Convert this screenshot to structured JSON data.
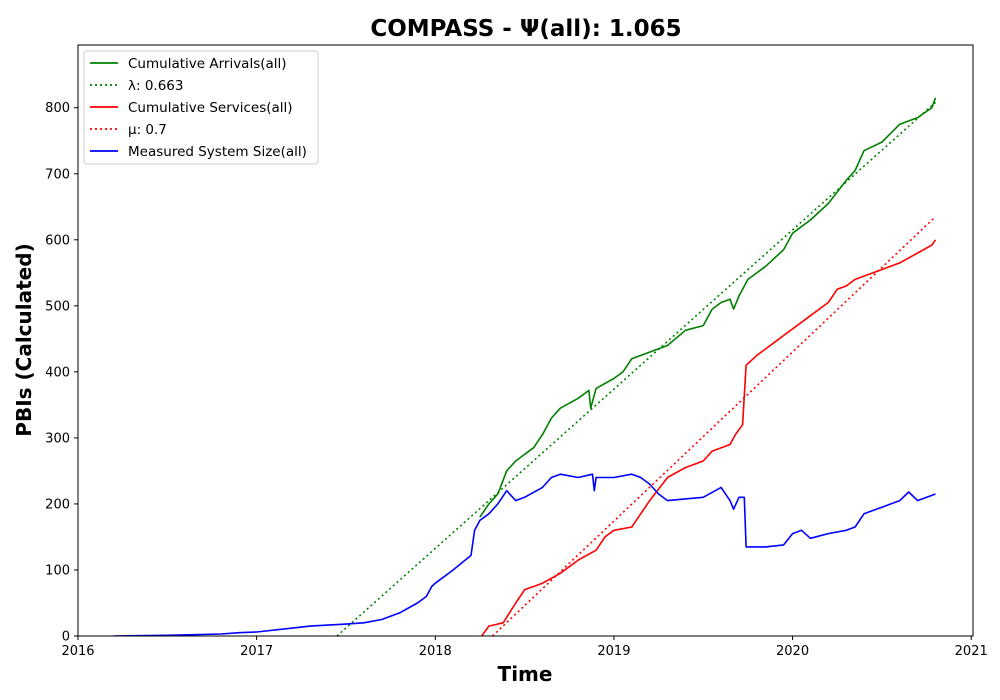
{
  "chart_data": {
    "type": "line",
    "title": "COMPASS -  Ψ(all): 1.065",
    "xlabel": "Time",
    "ylabel": "PBIs (Calculated)",
    "xlim": [
      2016,
      2021.01
    ],
    "ylim": [
      0,
      895
    ],
    "x_ticks": [
      "2016",
      "2017",
      "2018",
      "2019",
      "2020",
      "2021"
    ],
    "y_ticks": [
      "0",
      "100",
      "200",
      "300",
      "400",
      "500",
      "600",
      "700",
      "800"
    ],
    "grid": false,
    "legend_placement": "top-left",
    "colors": {
      "arrivals": "#008000",
      "services": "#ff0000",
      "system_size": "#0000ff"
    },
    "legend": [
      {
        "label": "Cumulative Arrivals(all)",
        "color": "#008000",
        "style": "solid"
      },
      {
        "label": "λ: 0.663",
        "color": "#008000",
        "style": "dotted"
      },
      {
        "label": "Cumulative Services(all)",
        "color": "#ff0000",
        "style": "solid"
      },
      {
        "label": "μ: 0.7",
        "color": "#ff0000",
        "style": "dotted"
      },
      {
        "label": "Measured System Size(all)",
        "color": "#0000ff",
        "style": "solid"
      }
    ],
    "series": [
      {
        "name": "Cumulative Arrivals(all)",
        "color": "#008000",
        "style": "solid",
        "points": [
          [
            2018.25,
            180
          ],
          [
            2018.3,
            200
          ],
          [
            2018.35,
            215
          ],
          [
            2018.4,
            250
          ],
          [
            2018.45,
            265
          ],
          [
            2018.5,
            275
          ],
          [
            2018.55,
            285
          ],
          [
            2018.6,
            305
          ],
          [
            2018.65,
            330
          ],
          [
            2018.7,
            345
          ],
          [
            2018.8,
            360
          ],
          [
            2018.86,
            372
          ],
          [
            2018.87,
            345
          ],
          [
            2018.9,
            375
          ],
          [
            2019.0,
            390
          ],
          [
            2019.05,
            400
          ],
          [
            2019.1,
            420
          ],
          [
            2019.2,
            430
          ],
          [
            2019.3,
            440
          ],
          [
            2019.4,
            463
          ],
          [
            2019.5,
            470
          ],
          [
            2019.55,
            495
          ],
          [
            2019.6,
            505
          ],
          [
            2019.65,
            510
          ],
          [
            2019.67,
            495
          ],
          [
            2019.7,
            515
          ],
          [
            2019.75,
            540
          ],
          [
            2019.85,
            560
          ],
          [
            2019.95,
            585
          ],
          [
            2020.0,
            610
          ],
          [
            2020.1,
            630
          ],
          [
            2020.2,
            655
          ],
          [
            2020.3,
            690
          ],
          [
            2020.35,
            705
          ],
          [
            2020.4,
            735
          ],
          [
            2020.5,
            748
          ],
          [
            2020.6,
            775
          ],
          [
            2020.7,
            785
          ],
          [
            2020.78,
            800
          ],
          [
            2020.8,
            815
          ]
        ]
      },
      {
        "name": "λ: 0.663",
        "color": "#008000",
        "style": "dotted",
        "points": [
          [
            2017.45,
            0
          ],
          [
            2020.8,
            808
          ]
        ]
      },
      {
        "name": "Cumulative Services(all)",
        "color": "#ff0000",
        "style": "solid",
        "points": [
          [
            2018.26,
            0
          ],
          [
            2018.3,
            15
          ],
          [
            2018.38,
            20
          ],
          [
            2018.45,
            50
          ],
          [
            2018.5,
            70
          ],
          [
            2018.6,
            80
          ],
          [
            2018.7,
            95
          ],
          [
            2018.8,
            115
          ],
          [
            2018.9,
            130
          ],
          [
            2018.95,
            150
          ],
          [
            2019.0,
            160
          ],
          [
            2019.1,
            165
          ],
          [
            2019.15,
            185
          ],
          [
            2019.2,
            205
          ],
          [
            2019.3,
            240
          ],
          [
            2019.4,
            255
          ],
          [
            2019.5,
            265
          ],
          [
            2019.55,
            280
          ],
          [
            2019.65,
            290
          ],
          [
            2019.68,
            305
          ],
          [
            2019.72,
            320
          ],
          [
            2019.74,
            410
          ],
          [
            2019.8,
            425
          ],
          [
            2019.9,
            445
          ],
          [
            2019.95,
            455
          ],
          [
            2020.0,
            465
          ],
          [
            2020.1,
            485
          ],
          [
            2020.2,
            505
          ],
          [
            2020.25,
            525
          ],
          [
            2020.3,
            530
          ],
          [
            2020.35,
            540
          ],
          [
            2020.4,
            545
          ],
          [
            2020.5,
            555
          ],
          [
            2020.6,
            565
          ],
          [
            2020.7,
            580
          ],
          [
            2020.78,
            592
          ],
          [
            2020.8,
            600
          ]
        ]
      },
      {
        "name": "μ: 0.7",
        "color": "#ff0000",
        "style": "dotted",
        "points": [
          [
            2018.32,
            0
          ],
          [
            2020.8,
            635
          ]
        ]
      },
      {
        "name": "Measured System Size(all)",
        "color": "#0000ff",
        "style": "solid",
        "points": [
          [
            2016.2,
            0
          ],
          [
            2016.5,
            1
          ],
          [
            2016.8,
            3
          ],
          [
            2016.9,
            5
          ],
          [
            2017.0,
            6
          ],
          [
            2017.2,
            12
          ],
          [
            2017.3,
            15
          ],
          [
            2017.5,
            18
          ],
          [
            2017.6,
            20
          ],
          [
            2017.7,
            25
          ],
          [
            2017.8,
            35
          ],
          [
            2017.9,
            50
          ],
          [
            2017.95,
            60
          ],
          [
            2017.98,
            75
          ],
          [
            2018.0,
            80
          ],
          [
            2018.1,
            100
          ],
          [
            2018.2,
            122
          ],
          [
            2018.22,
            160
          ],
          [
            2018.25,
            175
          ],
          [
            2018.3,
            185
          ],
          [
            2018.35,
            200
          ],
          [
            2018.4,
            220
          ],
          [
            2018.45,
            205
          ],
          [
            2018.5,
            210
          ],
          [
            2018.6,
            225
          ],
          [
            2018.65,
            240
          ],
          [
            2018.7,
            245
          ],
          [
            2018.8,
            240
          ],
          [
            2018.88,
            245
          ],
          [
            2018.89,
            220
          ],
          [
            2018.9,
            240
          ],
          [
            2019.0,
            240
          ],
          [
            2019.1,
            245
          ],
          [
            2019.15,
            240
          ],
          [
            2019.2,
            230
          ],
          [
            2019.25,
            215
          ],
          [
            2019.3,
            205
          ],
          [
            2019.5,
            210
          ],
          [
            2019.6,
            225
          ],
          [
            2019.65,
            205
          ],
          [
            2019.67,
            192
          ],
          [
            2019.7,
            210
          ],
          [
            2019.73,
            210
          ],
          [
            2019.74,
            135
          ],
          [
            2019.85,
            135
          ],
          [
            2019.95,
            138
          ],
          [
            2020.0,
            155
          ],
          [
            2020.05,
            160
          ],
          [
            2020.1,
            148
          ],
          [
            2020.2,
            155
          ],
          [
            2020.3,
            160
          ],
          [
            2020.35,
            165
          ],
          [
            2020.4,
            185
          ],
          [
            2020.5,
            195
          ],
          [
            2020.6,
            205
          ],
          [
            2020.65,
            218
          ],
          [
            2020.7,
            205
          ],
          [
            2020.8,
            215
          ]
        ]
      }
    ]
  }
}
